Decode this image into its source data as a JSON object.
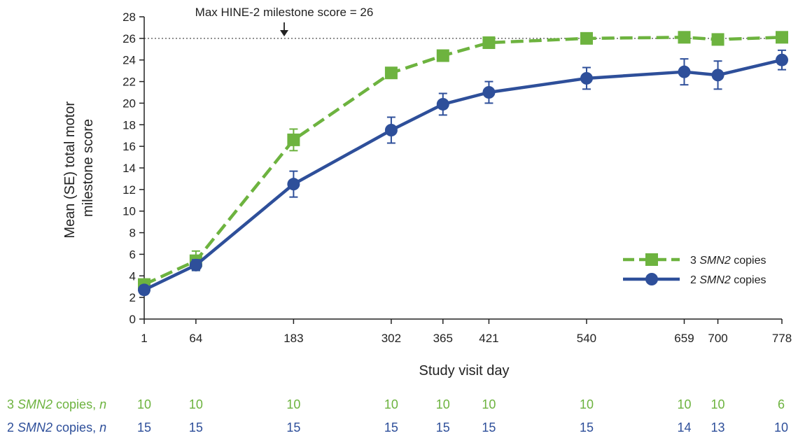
{
  "chart_data": {
    "type": "line",
    "xlabel": "Study visit day",
    "ylabel_lines": [
      "Mean (SE) total motor",
      "milestone score"
    ],
    "x": [
      1,
      64,
      183,
      302,
      365,
      421,
      540,
      659,
      700,
      778
    ],
    "xlim": [
      1,
      778
    ],
    "ylim": [
      0,
      28
    ],
    "yticks": [
      0,
      2,
      4,
      6,
      8,
      10,
      12,
      14,
      16,
      18,
      20,
      22,
      24,
      26,
      28
    ],
    "grid": false,
    "legend_position": "right",
    "reference_line": {
      "y": 26,
      "label": "Max HINE-2 milestone score = 26",
      "style": "dotted"
    },
    "series": [
      {
        "name_plain": "3 ",
        "name_italic": "SMN2",
        "name_suffix": " copies",
        "color": "#6DB33F",
        "line": "dashed",
        "marker": "square",
        "values": [
          3.2,
          5.4,
          16.6,
          22.8,
          24.4,
          25.6,
          26.0,
          26.1,
          25.9,
          26.1
        ],
        "se": [
          0.3,
          0.9,
          1.0,
          0.3,
          0.3,
          0.3,
          0.1,
          0.1,
          0.1,
          0.1
        ],
        "n_label_plain": "3 ",
        "n_label_italic": "SMN2",
        "n_label_suffix": " copies, ",
        "n_label_n": "n",
        "n": [
          "10",
          "10",
          "10",
          "10",
          "10",
          "10",
          "10",
          "10",
          "10",
          "6"
        ]
      },
      {
        "name_plain": "2 ",
        "name_italic": "SMN2",
        "name_suffix": " copies",
        "color": "#2E4F9A",
        "line": "solid",
        "marker": "circle",
        "values": [
          2.7,
          5.0,
          12.5,
          17.5,
          19.9,
          21.0,
          22.3,
          22.9,
          22.6,
          24.0
        ],
        "se": [
          0.4,
          0.5,
          1.2,
          1.2,
          1.0,
          1.0,
          1.0,
          1.2,
          1.3,
          0.9
        ],
        "n_label_plain": "2 ",
        "n_label_italic": "SMN2",
        "n_label_suffix": " copies, ",
        "n_label_n": "n",
        "n": [
          "15",
          "15",
          "15",
          "15",
          "15",
          "15",
          "15",
          "14",
          "13",
          "10"
        ]
      }
    ]
  }
}
